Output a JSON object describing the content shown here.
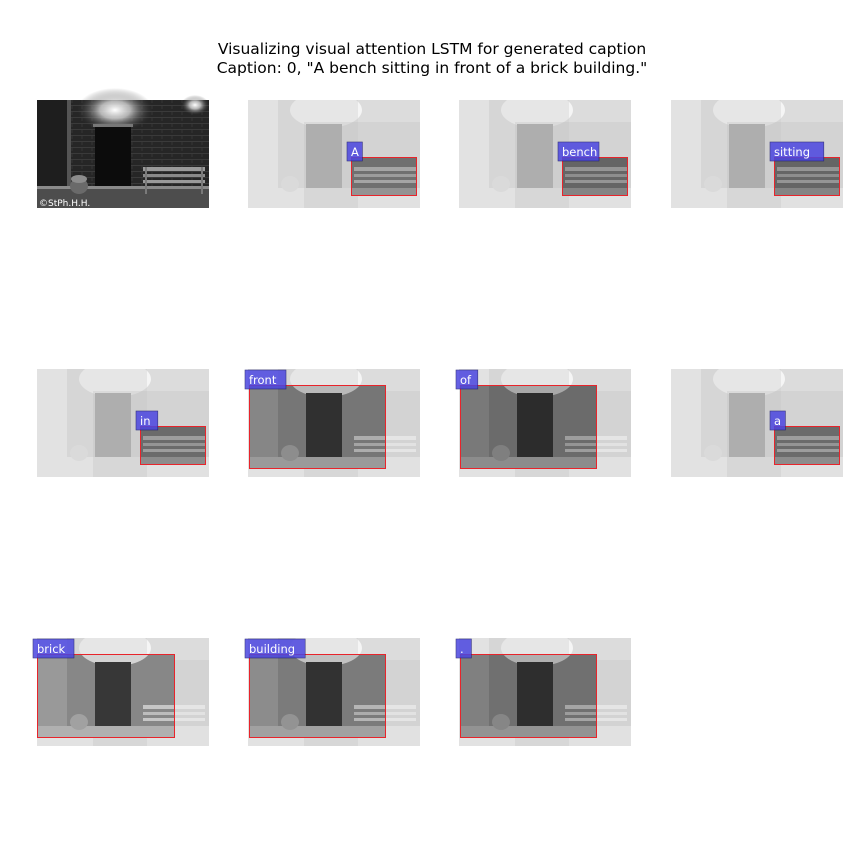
{
  "figure": {
    "title_line1": "Visualizing visual attention LSTM for generated caption",
    "title_line2": "Caption: 0, \"A bench sitting in front of a brick building.\""
  },
  "original_image": {
    "watermark": "©StPh.H.H."
  },
  "colors": {
    "box": "#e8242b",
    "label_fill": "#4b46e0",
    "label_text": "#ffffff",
    "background": "#ffffff"
  },
  "panels": [
    {
      "word": "A",
      "focus": "bench-right",
      "intensity": 0.75
    },
    {
      "word": "bench",
      "focus": "bench-right",
      "intensity": 0.85
    },
    {
      "word": "sitting",
      "focus": "bench-right",
      "intensity": 0.85
    },
    {
      "word": "in",
      "focus": "bench-right",
      "intensity": 0.8
    },
    {
      "word": "front",
      "focus": "wide-left",
      "intensity": 0.7
    },
    {
      "word": "of",
      "focus": "wide-left",
      "intensity": 0.8
    },
    {
      "word": "a",
      "focus": "bench-right",
      "intensity": 0.8
    },
    {
      "word": "brick",
      "focus": "brick-left",
      "intensity": 0.55
    },
    {
      "word": "building",
      "focus": "wide-left",
      "intensity": 0.65
    },
    {
      "word": ".",
      "focus": "wide-left",
      "intensity": 0.75
    }
  ]
}
